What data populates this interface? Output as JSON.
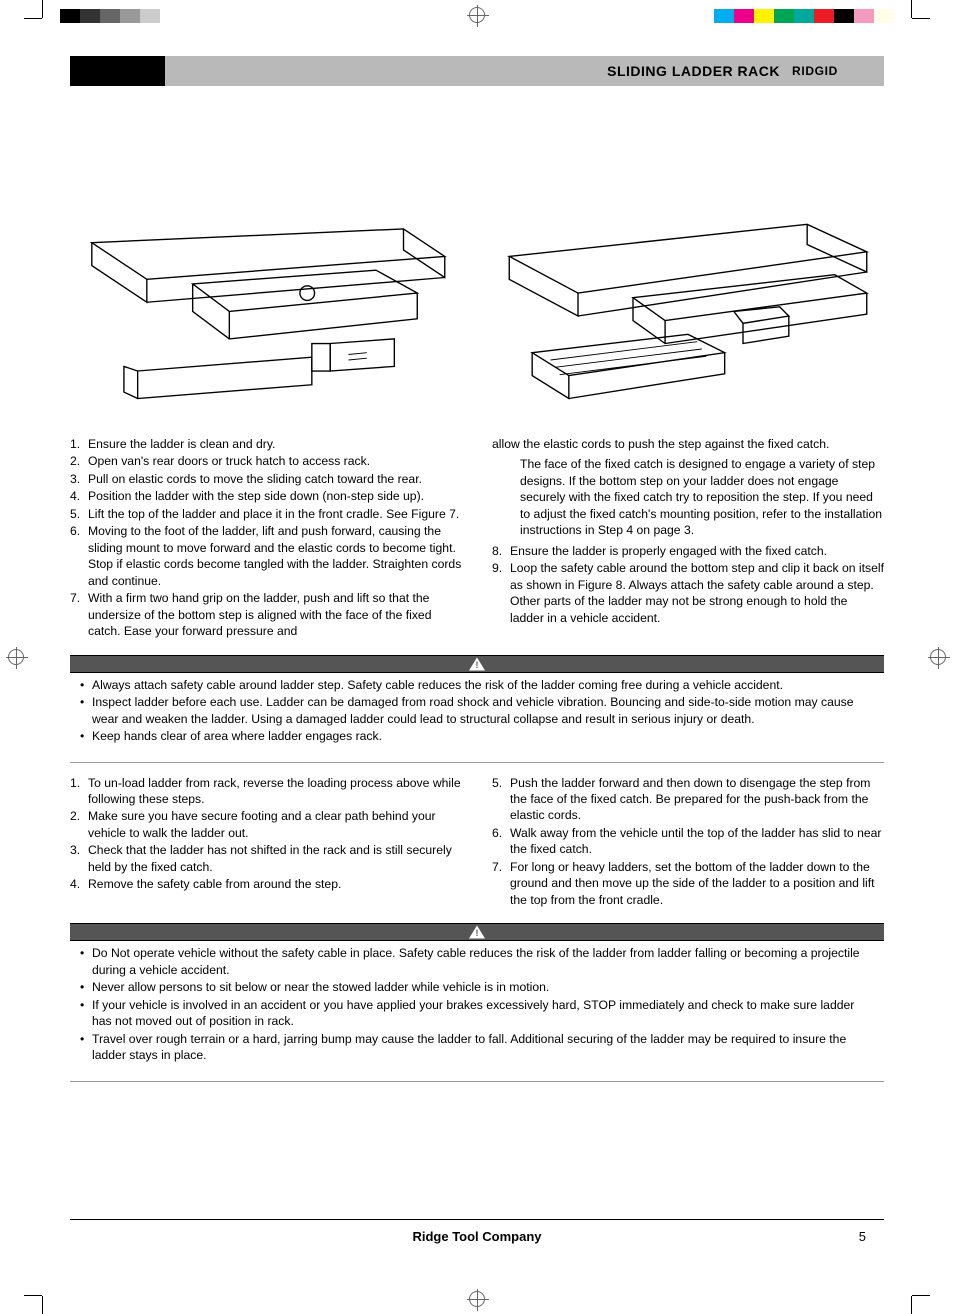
{
  "header": {
    "title": "SLIDING LADDER RACK",
    "brand": "RIDGID"
  },
  "colorbar_left": [
    "#000000",
    "#333333",
    "#666666",
    "#999999",
    "#cccccc"
  ],
  "colorbar_right": [
    "#00aeef",
    "#ec008c",
    "#fff200",
    "#00a651",
    "#00a99d",
    "#ed1c24",
    "#000000",
    "#f49ac1",
    "#fffde7"
  ],
  "loading_steps_left": [
    {
      "n": "1.",
      "t": "Ensure the ladder is clean and dry."
    },
    {
      "n": "2.",
      "t": "Open van's rear doors or truck hatch to access rack."
    },
    {
      "n": "3.",
      "t": "Pull on elastic cords to move the sliding catch toward the rear."
    },
    {
      "n": "4.",
      "t": "Position the ladder with the step side down (non-step side up)."
    },
    {
      "n": "5.",
      "t": "Lift the top of the ladder and place it in the front cradle. See Figure 7."
    },
    {
      "n": "6.",
      "t": "Moving to the foot of the ladder, lift and push forward, causing the sliding mount to move forward and the elastic cords to become tight. Stop if elastic cords become tangled with the ladder. Straighten cords and continue."
    },
    {
      "n": "7.",
      "t": "With a firm two hand grip on the ladder, push and lift so that the undersize of the bottom step is aligned with the face of the fixed catch. Ease your forward pressure and"
    }
  ],
  "loading_right_cont": "allow the elastic cords to push the step against the fixed catch.",
  "loading_right_inset": "The face of the fixed catch is designed to engage a variety of step designs. If the bottom step on your ladder does not engage securely with the fixed catch try to reposition the step. If you need to adjust the fixed catch's mounting position, refer to the installation instructions in Step 4 on page 3.",
  "loading_steps_right": [
    {
      "n": "8.",
      "t": "Ensure the ladder is properly engaged with the fixed catch."
    },
    {
      "n": "9.",
      "t": "Loop the safety cable around the bottom step and clip it back on itself as shown in Figure 8. Always attach the safety cable around a step. Other parts of the ladder may not be strong enough to hold the ladder in a vehicle accident."
    }
  ],
  "warning1_bullets": [
    "Always attach safety cable around ladder step. Safety cable reduces the risk of the ladder coming free during a vehicle accident.",
    "Inspect ladder before each use. Ladder can be damaged from road shock and vehicle vibration. Bouncing and side-to-side motion may cause wear and weaken the ladder. Using a damaged ladder could lead to structural collapse and result in serious injury or death.",
    "Keep hands clear of area where ladder engages rack."
  ],
  "unload_left": [
    {
      "n": "1.",
      "t": "To un-load ladder from rack, reverse the loading process above while following these steps."
    },
    {
      "n": "2.",
      "t": "Make sure you have secure footing and a clear path behind your vehicle to walk the ladder out."
    },
    {
      "n": "3.",
      "t": "Check that the ladder has not shifted in the rack and is still securely held by the fixed catch."
    },
    {
      "n": "4.",
      "t": "Remove the safety cable from around the step."
    }
  ],
  "unload_right": [
    {
      "n": "5.",
      "t": "Push the ladder forward and then down to disengage the step from the face of the fixed catch. Be prepared for the push-back from the elastic cords."
    },
    {
      "n": "6.",
      "t": "Walk away from the vehicle until the top of the ladder has slid to near the fixed catch."
    },
    {
      "n": "7.",
      "t": "For long or heavy ladders, set the bottom of the ladder down to the ground and then move up the side of the ladder to a position and lift the top from the front cradle."
    }
  ],
  "warning2_bullets": [
    "Do Not operate vehicle without the safety cable in place. Safety cable reduces the risk of the ladder from ladder falling or becoming a projectile during a vehicle accident.",
    "Never allow persons to sit below or near the stowed ladder while vehicle is in motion.",
    "If your vehicle is involved in an accident or you have applied your brakes excessively hard, STOP immediately and check to make sure ladder has not moved out of position in rack.",
    "Travel over rough terrain or a hard, jarring bump may cause the ladder to fall. Additional securing of the ladder may be required to insure the ladder stays in place."
  ],
  "footer": {
    "company": "Ridge Tool Company",
    "page": "5"
  }
}
